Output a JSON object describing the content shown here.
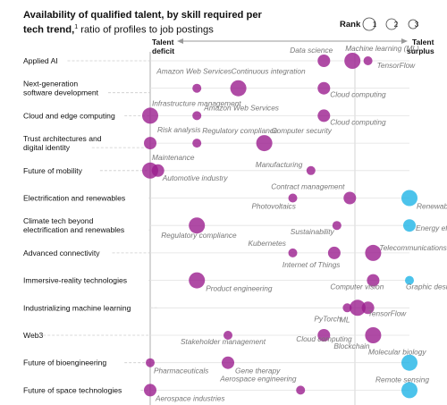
{
  "title_bold": "Availability of qualified talent, by skill required per tech trend,",
  "title_sup": "1",
  "title_rest": " ratio of profiles to job postings",
  "rank_label": "Rank",
  "rank_numbers": [
    "1",
    "2",
    "3"
  ],
  "axis_left": [
    "Talent",
    "deficit"
  ],
  "axis_right": [
    "Talent",
    "surplus"
  ],
  "colors": {
    "deficit": "#9b1e8f",
    "surplus": "#1fb4e6",
    "axis": "#999999",
    "grid": "#cccccc"
  },
  "chart_data": {
    "type": "scatter",
    "x_scale": "ratio of profiles to job postings",
    "trends": [
      {
        "label": [
          "Applied AI"
        ],
        "skills": [
          {
            "name": "Data science",
            "x": 0.67,
            "rank": 2
          },
          {
            "name": "Machine learning (ML)",
            "x": 0.78,
            "rank": 1
          },
          {
            "name": "TensorFlow",
            "x": 0.84,
            "rank": 3
          }
        ]
      },
      {
        "label": [
          "Next-generation",
          "software development"
        ],
        "skills": [
          {
            "name": "Amazon Web Services",
            "x": 0.18,
            "rank": 3
          },
          {
            "name": "Continuous integration",
            "x": 0.34,
            "rank": 1
          },
          {
            "name": "Cloud computing",
            "x": 0.67,
            "rank": 2
          }
        ]
      },
      {
        "label": [
          "Cloud and edge computing"
        ],
        "skills": [
          {
            "name": "Infrastructure management",
            "x": 0.0,
            "rank": 1
          },
          {
            "name": "Amazon Web Services",
            "x": 0.18,
            "rank": 3
          },
          {
            "name": "Cloud computing",
            "x": 0.67,
            "rank": 2
          }
        ]
      },
      {
        "label": [
          "Trust architectures and",
          "digital identity"
        ],
        "skills": [
          {
            "name": "Risk analysis",
            "x": 0.0,
            "rank": 2
          },
          {
            "name": "Regulatory compliance",
            "x": 0.18,
            "rank": 3
          },
          {
            "name": "Computer security",
            "x": 0.44,
            "rank": 1
          }
        ]
      },
      {
        "label": [
          "Future of mobility"
        ],
        "skills": [
          {
            "name": "Maintenance",
            "x": 0.0,
            "rank": 1
          },
          {
            "name": "Automotive industry",
            "x": 0.03,
            "rank": 2
          },
          {
            "name": "Manufacturing",
            "x": 0.62,
            "rank": 3
          }
        ]
      },
      {
        "label": [
          "Electrification and renewables"
        ],
        "skills": [
          {
            "name": "Photovoltaics",
            "x": 0.55,
            "rank": 3
          },
          {
            "name": "Contract management",
            "x": 0.77,
            "rank": 2
          },
          {
            "name": "Renewable energy",
            "x": 1.0,
            "rank": 1
          }
        ]
      },
      {
        "label": [
          "Climate tech beyond",
          "electrification and renewables"
        ],
        "skills": [
          {
            "name": "Regulatory compliance",
            "x": 0.18,
            "rank": 1
          },
          {
            "name": "Sustainability",
            "x": 0.72,
            "rank": 3
          },
          {
            "name": "Energy efficiency",
            "x": 1.0,
            "rank": 2
          }
        ]
      },
      {
        "label": [
          "Advanced connectivity"
        ],
        "skills": [
          {
            "name": "Kubernetes",
            "x": 0.55,
            "rank": 3
          },
          {
            "name": "Internet of Things",
            "x": 0.71,
            "rank": 2
          },
          {
            "name": "Telecommunications",
            "x": 0.86,
            "rank": 1
          }
        ]
      },
      {
        "label": [
          "Immersive-reality technologies"
        ],
        "skills": [
          {
            "name": "Product engineering",
            "x": 0.18,
            "rank": 1
          },
          {
            "name": "Computer vision",
            "x": 0.86,
            "rank": 2
          },
          {
            "name": "Graphic design",
            "x": 1.0,
            "rank": 3
          }
        ]
      },
      {
        "label": [
          "Industrializing machine learning"
        ],
        "skills": [
          {
            "name": "PyTorch",
            "x": 0.76,
            "rank": 3
          },
          {
            "name": "ML",
            "x": 0.8,
            "rank": 1
          },
          {
            "name": "TensorFlow",
            "x": 0.84,
            "rank": 2
          }
        ]
      },
      {
        "label": [
          "Web3"
        ],
        "skills": [
          {
            "name": "Stakeholder management",
            "x": 0.3,
            "rank": 3
          },
          {
            "name": "Cloud computing",
            "x": 0.67,
            "rank": 2
          },
          {
            "name": "Blockchain",
            "x": 0.86,
            "rank": 1
          }
        ]
      },
      {
        "label": [
          "Future of bioengineering"
        ],
        "skills": [
          {
            "name": "Pharmaceuticals",
            "x": 0.0,
            "rank": 3
          },
          {
            "name": "Gene therapy",
            "x": 0.3,
            "rank": 2
          },
          {
            "name": "Molecular biology",
            "x": 1.0,
            "rank": 1
          }
        ]
      },
      {
        "label": [
          "Future of space technologies"
        ],
        "skills": [
          {
            "name": "Aerospace industries",
            "x": 0.0,
            "rank": 2
          },
          {
            "name": "Aerospace engineering",
            "x": 0.58,
            "rank": 3
          },
          {
            "name": "Remote sensing",
            "x": 1.0,
            "rank": 1
          }
        ]
      }
    ]
  }
}
